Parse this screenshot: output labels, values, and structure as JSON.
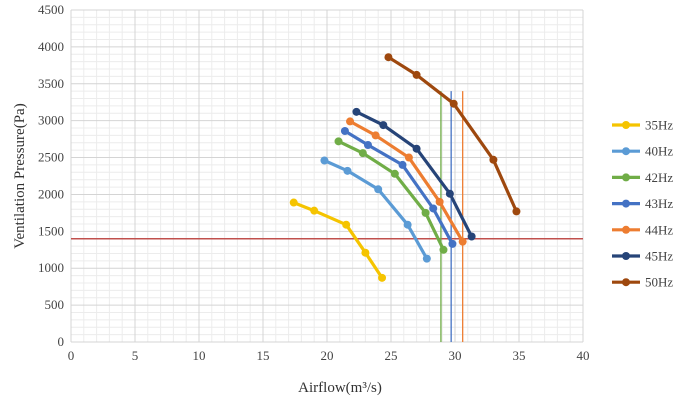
{
  "chart_data": {
    "type": "line",
    "xlabel": "Airflow(m³/s)",
    "ylabel": "Ventilation Pressure(Pa)",
    "xlim": [
      0,
      40
    ],
    "ylim": [
      0,
      4500
    ],
    "x_ticks": [
      0,
      5,
      10,
      15,
      20,
      25,
      30,
      35,
      40
    ],
    "y_ticks": [
      0,
      500,
      1000,
      1500,
      2000,
      2500,
      3000,
      3500,
      4000,
      4500
    ],
    "grid": true,
    "legend_position": "right",
    "series": [
      {
        "name": "35Hz",
        "color": "#F5C400",
        "points": [
          [
            17.4,
            1890
          ],
          [
            19.0,
            1780
          ],
          [
            21.5,
            1590
          ],
          [
            23.0,
            1210
          ],
          [
            24.3,
            870
          ]
        ]
      },
      {
        "name": "40Hz",
        "color": "#5B9BD5",
        "points": [
          [
            19.8,
            2460
          ],
          [
            21.6,
            2320
          ],
          [
            24.0,
            2070
          ],
          [
            26.3,
            1590
          ],
          [
            27.8,
            1130
          ]
        ]
      },
      {
        "name": "42Hz",
        "color": "#70AD47",
        "points": [
          [
            20.9,
            2720
          ],
          [
            22.8,
            2560
          ],
          [
            25.3,
            2280
          ],
          [
            27.7,
            1750
          ],
          [
            29.1,
            1250
          ]
        ]
      },
      {
        "name": "43Hz",
        "color": "#4472C4",
        "points": [
          [
            21.4,
            2860
          ],
          [
            23.2,
            2670
          ],
          [
            25.9,
            2400
          ],
          [
            28.3,
            1810
          ],
          [
            29.8,
            1330
          ]
        ]
      },
      {
        "name": "44Hz",
        "color": "#ED7D31",
        "points": [
          [
            21.8,
            2990
          ],
          [
            23.8,
            2800
          ],
          [
            26.4,
            2500
          ],
          [
            28.8,
            1900
          ],
          [
            30.6,
            1360
          ]
        ]
      },
      {
        "name": "45Hz",
        "color": "#264478",
        "points": [
          [
            22.3,
            3120
          ],
          [
            24.4,
            2940
          ],
          [
            27.0,
            2620
          ],
          [
            29.6,
            2010
          ],
          [
            31.3,
            1430
          ]
        ]
      },
      {
        "name": "50Hz",
        "color": "#9E480E",
        "points": [
          [
            24.8,
            3860
          ],
          [
            27.0,
            3620
          ],
          [
            29.9,
            3230
          ],
          [
            33.0,
            2470
          ],
          [
            34.8,
            1770
          ]
        ]
      }
    ],
    "reference_lines": [
      {
        "orientation": "horizontal",
        "value": 1400,
        "color": "#C0504D"
      },
      {
        "orientation": "vertical",
        "value": 28.9,
        "color": "#70AD47"
      },
      {
        "orientation": "vertical",
        "value": 29.7,
        "color": "#4472C4"
      },
      {
        "orientation": "vertical",
        "value": 30.6,
        "color": "#ED7D31"
      }
    ]
  }
}
